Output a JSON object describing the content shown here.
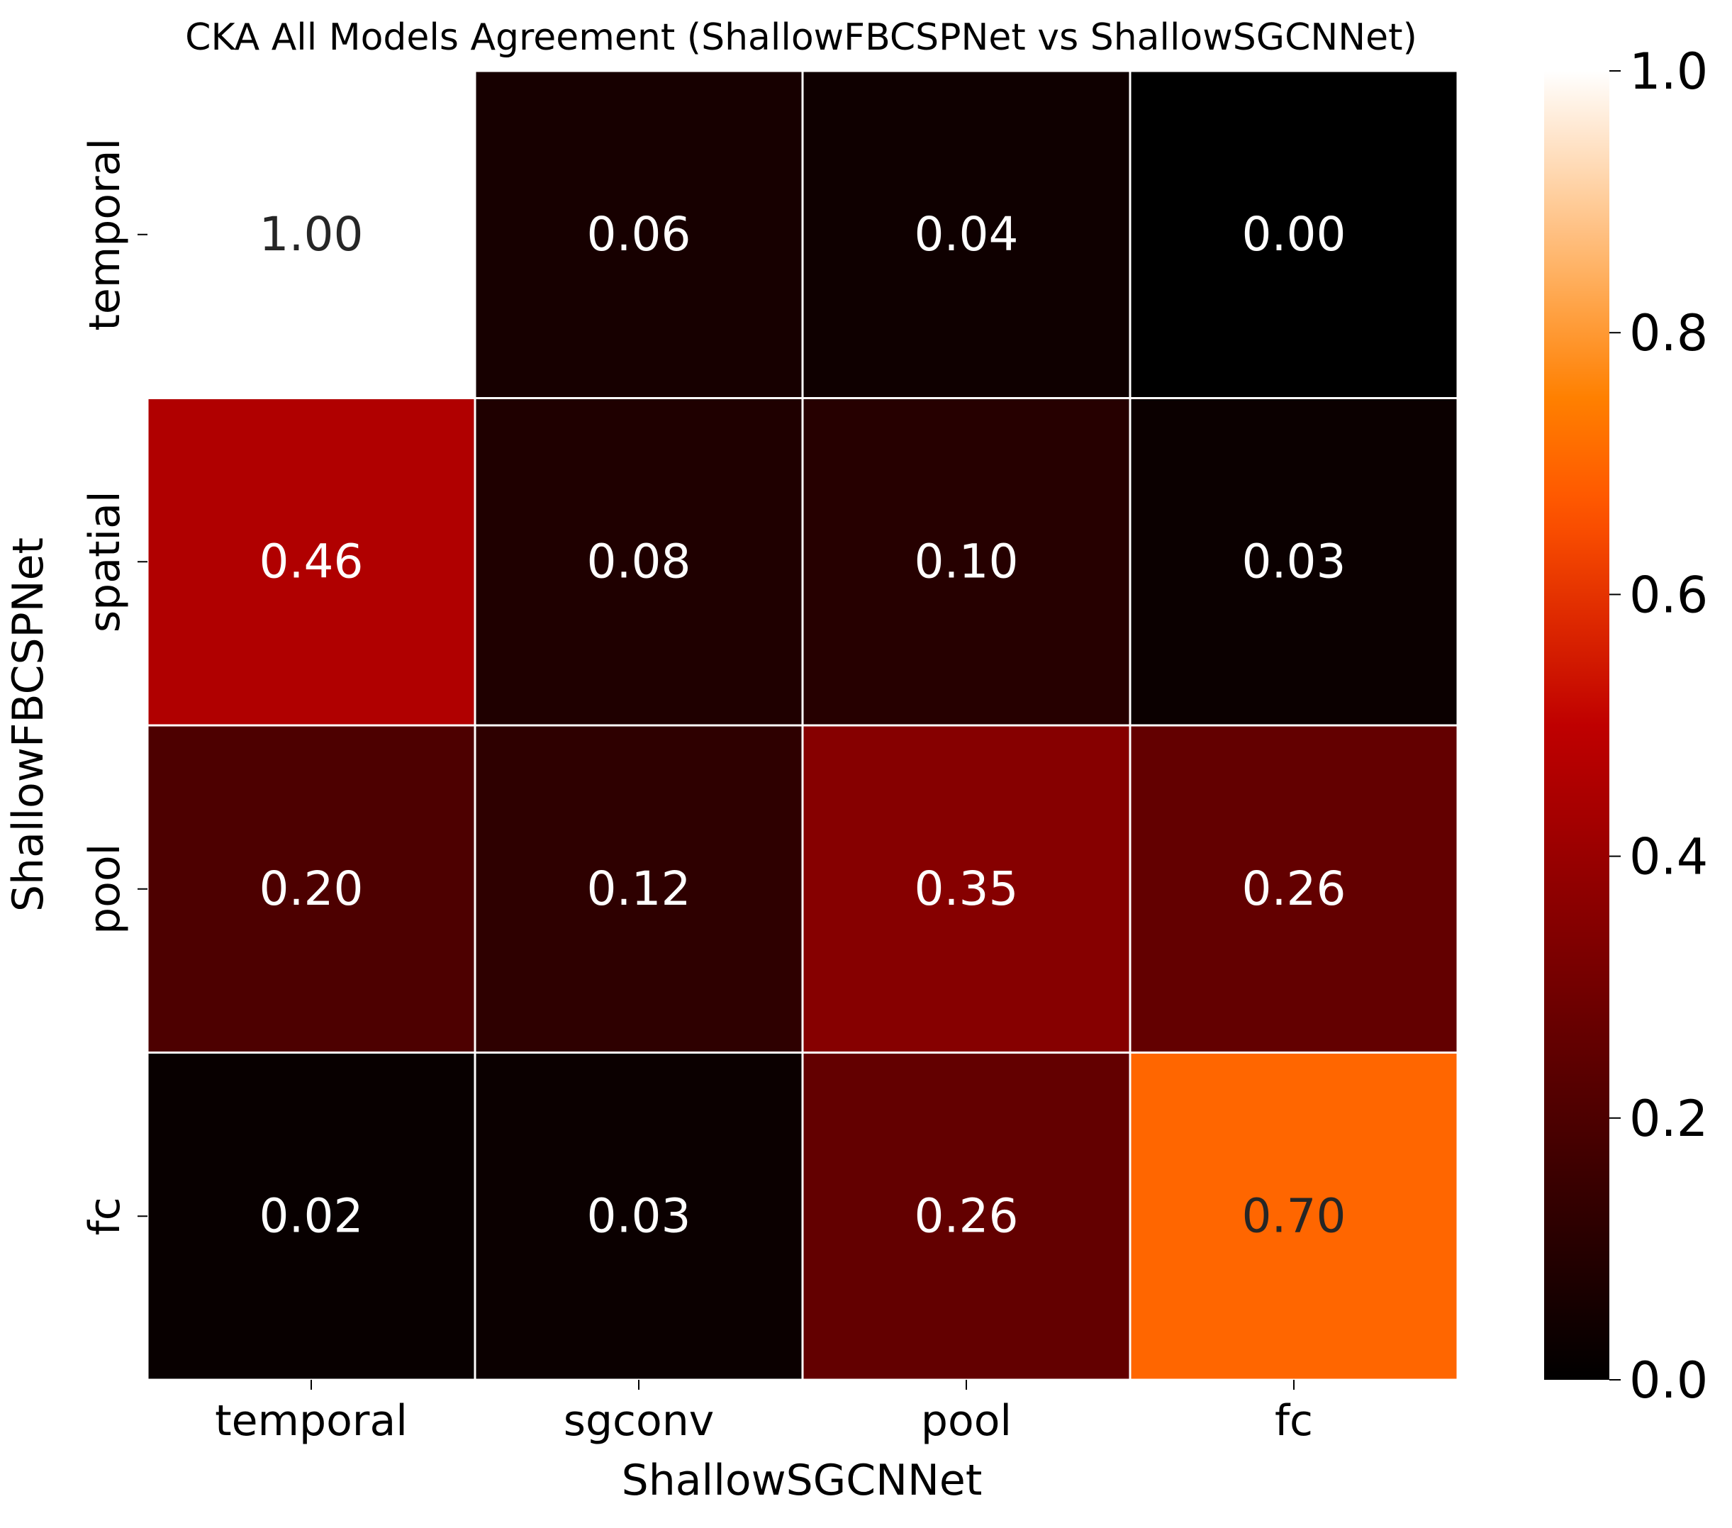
{
  "chart_data": {
    "type": "heatmap",
    "title": "CKA All Models Agreement (ShallowFBCSPNet vs ShallowSGCNNet)",
    "xlabel": "ShallowSGCNNet",
    "ylabel": "ShallowFBCSPNet",
    "x_categories": [
      "temporal",
      "sgconv",
      "pool",
      "fc"
    ],
    "y_categories": [
      "temporal",
      "spatial",
      "pool",
      "fc"
    ],
    "values": [
      [
        1.0,
        0.06,
        0.04,
        0.0
      ],
      [
        0.46,
        0.08,
        0.1,
        0.03
      ],
      [
        0.2,
        0.12,
        0.35,
        0.26
      ],
      [
        0.02,
        0.03,
        0.26,
        0.7
      ]
    ],
    "value_format": "2 decimals",
    "colormap": "gist_heat",
    "vmin": 0.0,
    "vmax": 1.0,
    "colorbar": {
      "ticks": [
        0.0,
        0.2,
        0.4,
        0.6,
        0.8,
        1.0
      ],
      "tick_labels": [
        "0.0",
        "0.2",
        "0.4",
        "0.6",
        "0.8",
        "1.0"
      ]
    },
    "cell_border_color": "#ffffff",
    "annotation_color_light": "#ffffff",
    "annotation_color_dark": "#262626"
  }
}
